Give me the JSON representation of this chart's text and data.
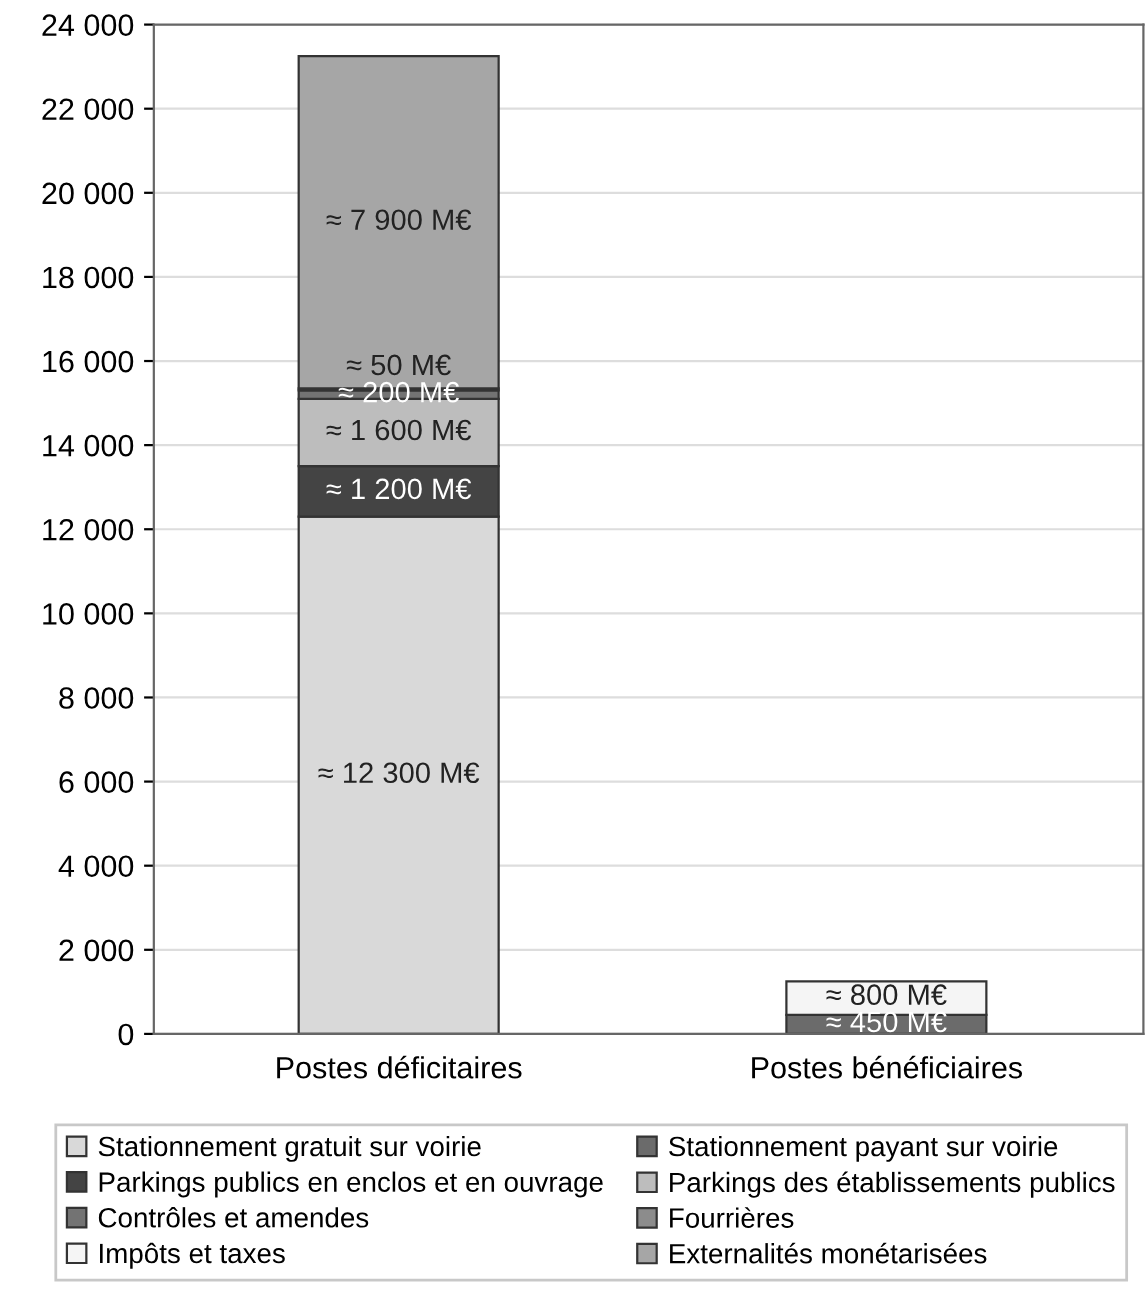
{
  "chart_data": {
    "type": "bar",
    "stacked": true,
    "categories": [
      "Postes déficitaires",
      "Postes bénéficiaires"
    ],
    "ylim": [
      0,
      24000
    ],
    "yticks": [
      {
        "value": 0,
        "label": "0"
      },
      {
        "value": 2000,
        "label": "2 000"
      },
      {
        "value": 4000,
        "label": "4 000"
      },
      {
        "value": 6000,
        "label": "6 000"
      },
      {
        "value": 8000,
        "label": "8 000"
      },
      {
        "value": 10000,
        "label": "10 000"
      },
      {
        "value": 12000,
        "label": "12 000"
      },
      {
        "value": 14000,
        "label": "14 000"
      },
      {
        "value": 16000,
        "label": "16 000"
      },
      {
        "value": 18000,
        "label": "18 000"
      },
      {
        "value": 20000,
        "label": "20 000"
      },
      {
        "value": 22000,
        "label": "22 000"
      },
      {
        "value": 24000,
        "label": "24 000"
      }
    ],
    "grid": "y",
    "legend": "bottom",
    "series": [
      {
        "name": "Stationnement gratuit sur voirie",
        "color": "#d9d9d9",
        "values": [
          12300,
          null
        ],
        "value_labels": [
          "≈ 12 300 M€",
          null
        ]
      },
      {
        "name": "Stationnement payant sur voirie",
        "color": "#6b6b6b",
        "values": [
          null,
          450
        ],
        "value_labels": [
          null,
          "≈ 450 M€"
        ]
      },
      {
        "name": "Parkings publics en enclos et en ouvrage",
        "color": "#444444",
        "values": [
          1200,
          null
        ],
        "value_labels": [
          "≈ 1 200 M€",
          null
        ]
      },
      {
        "name": "Parkings des établissements publics",
        "color": "#bdbdbd",
        "values": [
          1600,
          null
        ],
        "value_labels": [
          "≈ 1 600 M€",
          null
        ]
      },
      {
        "name": "Contrôles et amendes",
        "color": "#737373",
        "values": [
          200,
          null
        ],
        "value_labels": [
          "≈ 200 M€",
          null
        ]
      },
      {
        "name": "Fourrières",
        "color": "#8c8c8c",
        "values": [
          50,
          null
        ],
        "value_labels": [
          "≈ 50 M€",
          null
        ]
      },
      {
        "name": "Impôts et taxes",
        "color": "#f5f5f5",
        "values": [
          null,
          800
        ],
        "value_labels": [
          null,
          "≈ 800 M€"
        ]
      },
      {
        "name": "Externalités monétarisées",
        "color": "#a6a6a6",
        "values": [
          7900,
          null
        ],
        "value_labels": [
          "≈ 7 900 M€",
          null
        ]
      }
    ]
  }
}
